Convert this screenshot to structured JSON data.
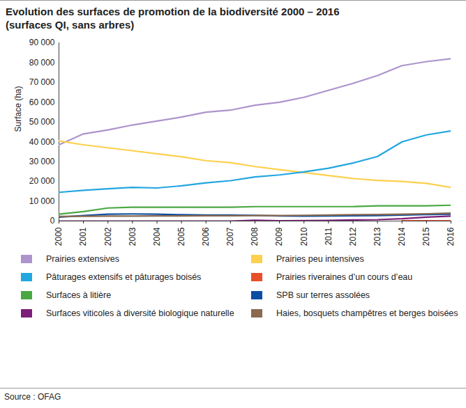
{
  "chart_data": {
    "type": "line",
    "title": "Evolution des surfaces de promotion de la biodiversité 2000 – 2016",
    "subtitle": "(surfaces QI, sans arbres)",
    "y_label": "Surface (ha)",
    "source": "Source : OFAG",
    "x": [
      2000,
      2001,
      2002,
      2003,
      2004,
      2005,
      2006,
      2007,
      2008,
      2009,
      2010,
      2011,
      2012,
      2013,
      2014,
      2015,
      2016
    ],
    "xlim": [
      2000,
      2016
    ],
    "xticks": [
      2000,
      2001,
      2002,
      2003,
      2004,
      2005,
      2006,
      2007,
      2008,
      2009,
      2010,
      2011,
      2012,
      2013,
      2014,
      2015,
      2016
    ],
    "ylim": [
      0,
      90000
    ],
    "yticks": [
      0,
      {
        "value": 10000,
        "label": "10 000"
      },
      {
        "value": 20000,
        "label": "20 000"
      },
      {
        "value": 30000,
        "label": "30 000"
      },
      {
        "value": 40000,
        "label": "40 000"
      },
      {
        "value": 50000,
        "label": "50 000"
      },
      {
        "value": 60000,
        "label": "60 000"
      },
      {
        "value": 70000,
        "label": "70 000"
      },
      {
        "value": 80000,
        "label": "80 000"
      },
      {
        "value": 90000,
        "label": "90 000"
      }
    ],
    "grid": false,
    "legend": "bottom",
    "series": [
      {
        "name": "Prairies extensives",
        "color": "#ad94cc",
        "values": [
          38500,
          44000,
          46000,
          48500,
          50500,
          52500,
          55000,
          56000,
          58500,
          60000,
          62500,
          66000,
          69500,
          73500,
          78500,
          80500,
          82000
        ]
      },
      {
        "name": "Prairies peu intensives",
        "color": "#fdd04d",
        "values": [
          40500,
          38500,
          37000,
          35500,
          34000,
          32500,
          30500,
          29500,
          27500,
          26000,
          24500,
          23000,
          21500,
          20500,
          20000,
          19000,
          17000
        ]
      },
      {
        "name": "Pâturages extensifs et pâturages boisés",
        "color": "#22a6e0",
        "values": [
          14500,
          15500,
          16300,
          17000,
          16700,
          17800,
          19300,
          20400,
          22300,
          23300,
          24800,
          26700,
          29300,
          32600,
          40000,
          43500,
          45500
        ]
      },
      {
        "name": "Prairies riveraines d’un cours d’eau",
        "color": "#e8502a",
        "values": [
          null,
          null,
          null,
          null,
          null,
          null,
          null,
          null,
          null,
          null,
          null,
          null,
          null,
          null,
          100,
          100,
          100
        ]
      },
      {
        "name": "Surfaces à litière",
        "color": "#4aa843",
        "values": [
          3500,
          4800,
          6600,
          7000,
          7000,
          7000,
          7000,
          7000,
          7300,
          7300,
          7300,
          7300,
          7300,
          7700,
          7700,
          7700,
          8000
        ]
      },
      {
        "name": "SPB sur terres assolées",
        "color": "#0b4ea2",
        "values": [
          2000,
          2800,
          3500,
          3600,
          3500,
          3200,
          3000,
          3000,
          2900,
          2600,
          2500,
          2600,
          2700,
          2800,
          3000,
          3300,
          3500
        ]
      },
      {
        "name": "Surfaces viticoles à diversité biologique naturelle",
        "color": "#7b1e7a",
        "values": [
          0,
          0,
          0,
          0,
          0,
          0,
          0,
          0,
          400,
          100,
          200,
          300,
          600,
          700,
          1200,
          2000,
          2500
        ]
      },
      {
        "name": "Haies, bosquets champêtres et berges boisées",
        "color": "#8b6a4f",
        "values": [
          2300,
          2400,
          2500,
          2500,
          2600,
          2600,
          2700,
          2700,
          2800,
          2800,
          2900,
          3000,
          3200,
          3300,
          3500,
          3700,
          4000
        ]
      }
    ]
  }
}
